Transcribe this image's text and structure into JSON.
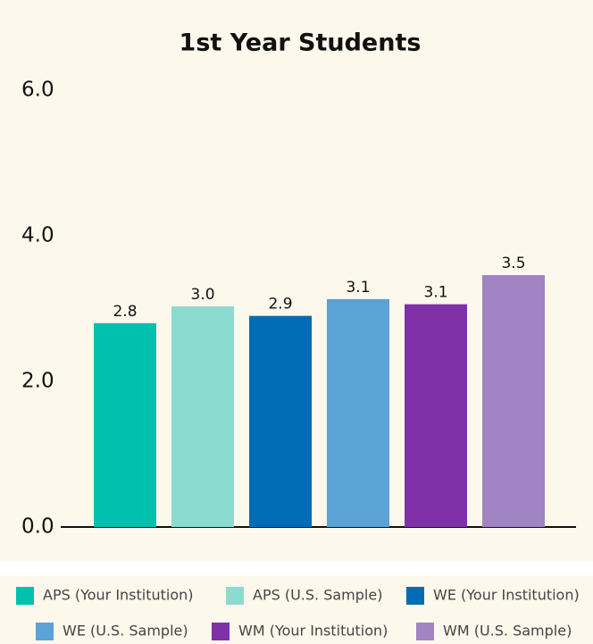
{
  "chart_data": {
    "type": "bar",
    "title": "1st Year Students",
    "categories": [
      "APS (Your Institution)",
      "APS (U.S. Sample)",
      "WE (Your Institution)",
      "WE (U.S. Sample)",
      "WM (Your Institution)",
      "WM (U.S. Sample)"
    ],
    "values": [
      2.8,
      3.03,
      2.9,
      3.13,
      3.06,
      3.46
    ],
    "value_labels": [
      "2.8",
      "3.0",
      "2.9",
      "3.1",
      "3.1",
      "3.5"
    ],
    "colors": [
      "#00c0ae",
      "#8cdbd0",
      "#006cb7",
      "#5ba2d6",
      "#8031a7",
      "#a084c3"
    ],
    "ylim": [
      0,
      6
    ],
    "yticks": [
      {
        "value": 0,
        "label": "0.0"
      },
      {
        "value": 2,
        "label": "2.0"
      },
      {
        "value": 4,
        "label": "4.0"
      },
      {
        "value": 6,
        "label": "6.0"
      }
    ],
    "grid": false
  }
}
